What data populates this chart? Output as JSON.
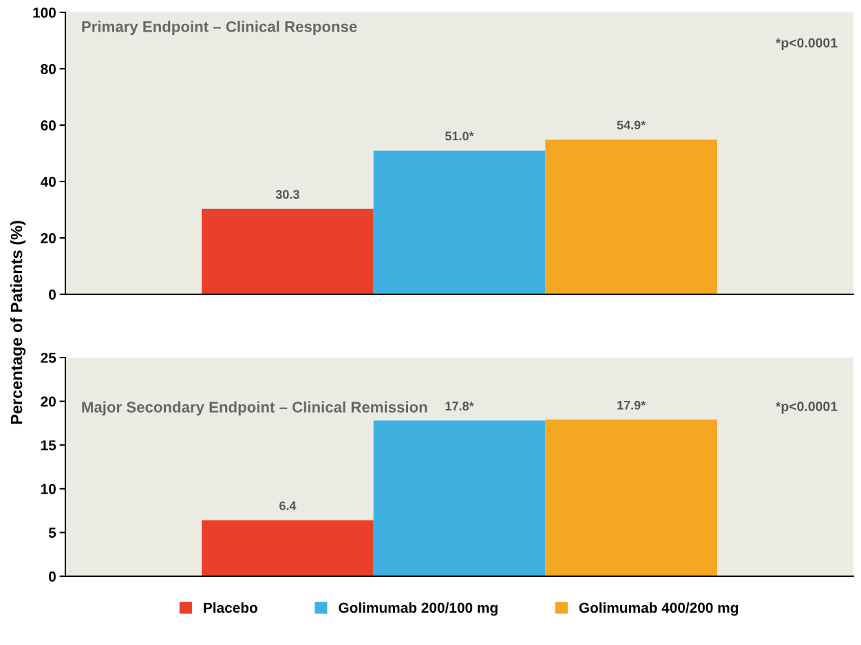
{
  "chart_data": [
    {
      "type": "bar",
      "title": "Primary Endpoint – Clinical Response",
      "ylabel": "Percentage of Patients (%)",
      "categories": [
        null
      ],
      "ylim": [
        0,
        100
      ],
      "yticks": [
        0,
        20,
        40,
        60,
        80,
        100
      ],
      "grid": false,
      "legend": false,
      "tick_labels": "y",
      "annotations": [
        "*p<0.0001"
      ],
      "series": [
        {
          "color": "#e8402a",
          "values": [
            30.3
          ],
          "value_labels": [
            "30.3"
          ]
        },
        {
          "color": "#3eb1e0",
          "values": [
            51.0
          ],
          "value_labels": [
            "51.0*"
          ]
        },
        {
          "color": "#f5a623",
          "values": [
            54.9
          ],
          "value_labels": [
            "54.9*"
          ]
        }
      ]
    },
    {
      "type": "bar",
      "title": "Major Secondary Endpoint – Clinical Remission",
      "categories": [
        null
      ],
      "ylim": [
        0,
        25
      ],
      "yticks": [
        0,
        5,
        10,
        15,
        20,
        25
      ],
      "grid": false,
      "legend": "bottom",
      "tick_labels": "y",
      "annotations": [
        "*p<0.0001"
      ],
      "series": [
        {
          "name": "Placebo",
          "color": "#e8402a",
          "values": [
            6.4
          ],
          "value_labels": [
            "6.4"
          ]
        },
        {
          "name": "Golimumab 200/100 mg",
          "color": "#3eb1e0",
          "values": [
            17.8
          ],
          "value_labels": [
            "17.8*"
          ]
        },
        {
          "name": "Golimumab 400/200 mg",
          "color": "#f5a623",
          "values": [
            17.9
          ],
          "value_labels": [
            "17.9*"
          ]
        }
      ]
    }
  ]
}
